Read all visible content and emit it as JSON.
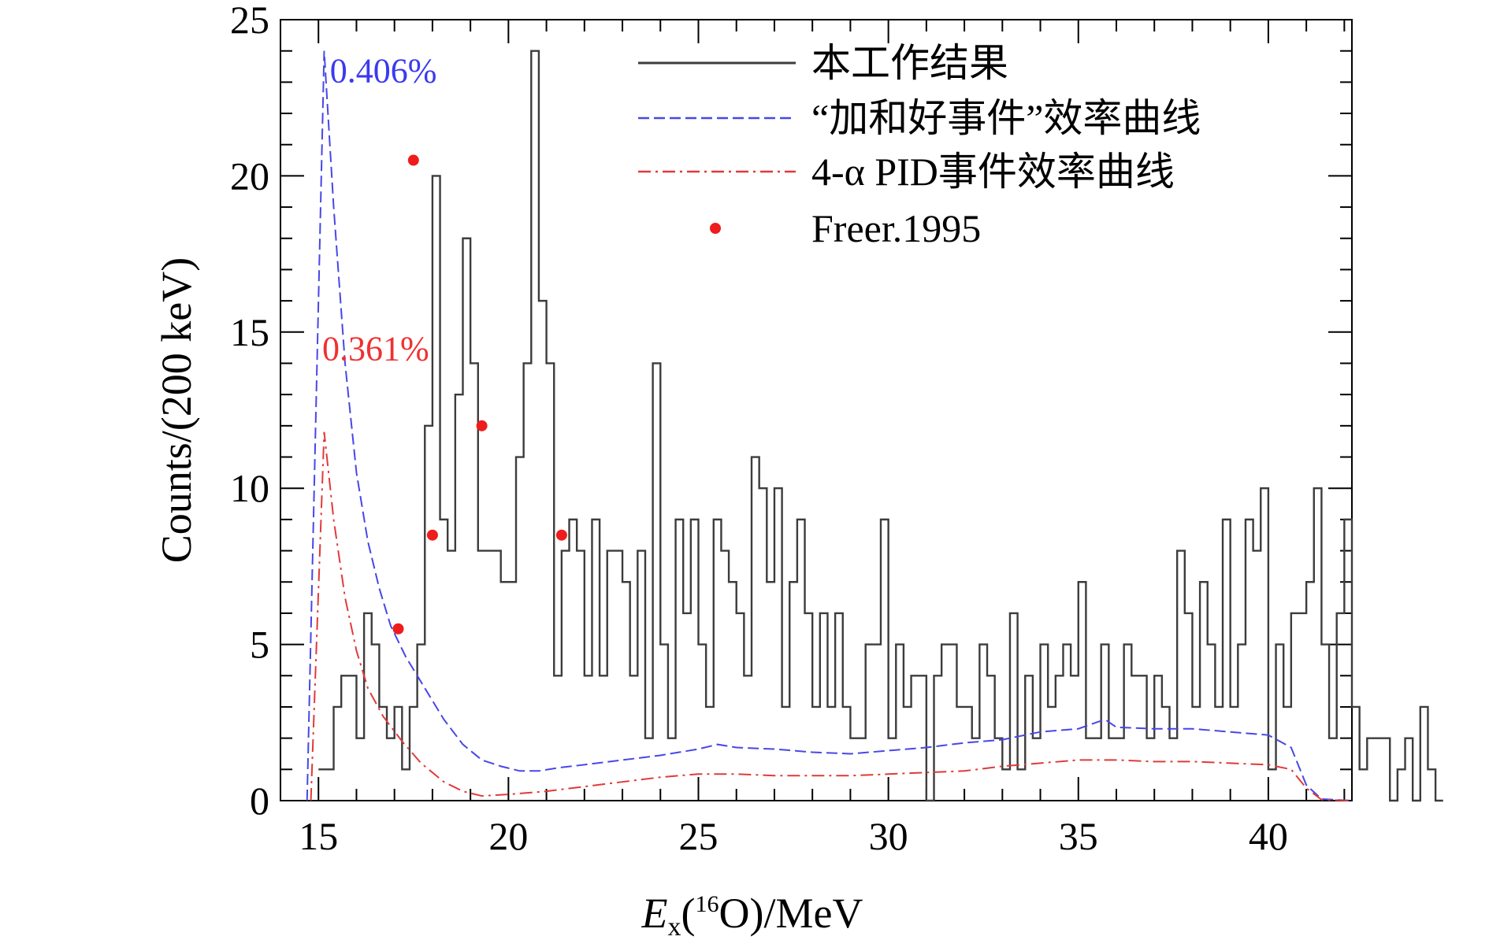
{
  "chart_data": {
    "type": "line",
    "xlabel": {
      "main": "E",
      "sub": "x",
      "paren_open": "(",
      "sup": "16",
      "element": "O",
      "tail": ")/MeV"
    },
    "ylabel": "Counts/(200 keV)",
    "xlim": [
      14.0,
      42.2
    ],
    "ylim": [
      0,
      25
    ],
    "x_ticks": [
      15,
      20,
      25,
      30,
      35,
      40
    ],
    "y_ticks": [
      0,
      5,
      10,
      15,
      20,
      25
    ],
    "legend_position": "top-right",
    "annotations": [
      {
        "text": "0.406%",
        "color": "#3a3af0",
        "x": 15.3,
        "y": 23.0
      },
      {
        "text": "0.361%",
        "color": "#f03030",
        "x": 15.1,
        "y": 14.1
      }
    ],
    "series": [
      {
        "name": "本工作结果",
        "style": "step",
        "color": "#3c3c3c",
        "bin_start": 15.0,
        "bin_width": 0.2,
        "values": [
          1,
          1,
          3,
          4,
          4,
          2,
          6,
          5,
          3,
          2,
          3,
          1,
          3,
          5,
          12,
          20,
          9,
          8,
          13,
          18,
          14,
          8,
          8,
          8,
          7,
          7,
          11,
          14,
          24,
          16,
          14,
          4,
          8,
          9,
          8,
          4,
          9,
          4,
          8,
          8,
          7,
          4,
          8,
          2,
          14,
          5,
          2,
          9,
          6,
          9,
          5,
          3,
          9,
          8,
          7,
          6,
          4,
          11,
          10,
          7,
          10,
          3,
          7,
          9,
          6,
          3,
          6,
          3,
          6,
          3,
          2,
          2,
          5,
          5,
          9,
          2,
          5,
          3,
          4,
          4,
          0,
          4,
          5,
          5,
          3,
          3,
          2,
          5,
          4,
          2,
          1,
          6,
          1,
          4,
          2,
          5,
          3,
          4,
          5,
          4,
          7,
          2,
          2,
          5,
          2,
          2,
          5,
          4,
          4,
          2,
          4,
          3,
          2,
          8,
          6,
          3,
          7,
          5,
          3,
          9,
          3,
          5,
          9,
          8,
          10,
          1,
          5,
          3,
          6,
          6,
          7,
          10,
          5,
          2,
          6,
          9,
          3,
          1,
          2,
          2,
          2,
          0,
          1,
          2,
          0,
          3,
          1,
          0
        ]
      },
      {
        "name": "“加和好事件”效率曲线",
        "style": "dashed",
        "color": "#4747e8",
        "points": [
          [
            14.7,
            0
          ],
          [
            15.15,
            24.0
          ],
          [
            15.4,
            19
          ],
          [
            15.7,
            14
          ],
          [
            16.0,
            10.5
          ],
          [
            16.3,
            8.3
          ],
          [
            16.6,
            6.8
          ],
          [
            16.9,
            5.6
          ],
          [
            17.3,
            4.6
          ],
          [
            17.8,
            3.6
          ],
          [
            18.3,
            2.6
          ],
          [
            18.8,
            1.8
          ],
          [
            19.3,
            1.3
          ],
          [
            19.8,
            1.1
          ],
          [
            20.3,
            0.95
          ],
          [
            20.8,
            0.95
          ],
          [
            21.3,
            1.05
          ],
          [
            22.0,
            1.15
          ],
          [
            23.0,
            1.3
          ],
          [
            24.0,
            1.45
          ],
          [
            25.0,
            1.65
          ],
          [
            25.5,
            1.8
          ],
          [
            26.0,
            1.7
          ],
          [
            27.0,
            1.65
          ],
          [
            28.0,
            1.55
          ],
          [
            29.0,
            1.5
          ],
          [
            30.0,
            1.6
          ],
          [
            31.0,
            1.7
          ],
          [
            32.0,
            1.85
          ],
          [
            33.0,
            1.95
          ],
          [
            34.0,
            2.2
          ],
          [
            35.0,
            2.3
          ],
          [
            35.7,
            2.6
          ],
          [
            36.0,
            2.35
          ],
          [
            37.0,
            2.3
          ],
          [
            38.0,
            2.3
          ],
          [
            39.0,
            2.2
          ],
          [
            40.0,
            2.1
          ],
          [
            40.6,
            1.7
          ],
          [
            41.0,
            0.5
          ],
          [
            41.4,
            0.05
          ],
          [
            42.2,
            0
          ]
        ]
      },
      {
        "name": "4-α PID事件效率曲线",
        "style": "dashdot",
        "color": "#e03a3a",
        "points": [
          [
            14.8,
            0
          ],
          [
            15.15,
            11.8
          ],
          [
            15.4,
            9.0
          ],
          [
            15.7,
            6.5
          ],
          [
            16.0,
            4.8
          ],
          [
            16.3,
            3.6
          ],
          [
            16.7,
            2.7
          ],
          [
            17.2,
            1.9
          ],
          [
            17.7,
            1.2
          ],
          [
            18.3,
            0.6
          ],
          [
            18.8,
            0.3
          ],
          [
            19.3,
            0.15
          ],
          [
            20.0,
            0.2
          ],
          [
            21.0,
            0.3
          ],
          [
            22.0,
            0.45
          ],
          [
            23.0,
            0.6
          ],
          [
            24.0,
            0.75
          ],
          [
            25.0,
            0.85
          ],
          [
            26.0,
            0.85
          ],
          [
            27.0,
            0.8
          ],
          [
            28.0,
            0.8
          ],
          [
            29.0,
            0.8
          ],
          [
            30.0,
            0.85
          ],
          [
            31.0,
            0.9
          ],
          [
            32.0,
            0.95
          ],
          [
            33.0,
            1.1
          ],
          [
            34.0,
            1.2
          ],
          [
            35.0,
            1.3
          ],
          [
            36.0,
            1.3
          ],
          [
            37.0,
            1.25
          ],
          [
            38.0,
            1.25
          ],
          [
            39.0,
            1.2
          ],
          [
            40.0,
            1.15
          ],
          [
            40.6,
            1.0
          ],
          [
            41.0,
            0.4
          ],
          [
            41.4,
            0.03
          ],
          [
            42.2,
            0
          ]
        ]
      },
      {
        "name": "Freer.1995",
        "style": "markers",
        "color": "#ee1c1c",
        "points": [
          [
            17.1,
            5.5
          ],
          [
            17.5,
            20.5
          ],
          [
            18.0,
            8.5
          ],
          [
            19.3,
            12.0
          ],
          [
            21.4,
            8.5
          ]
        ]
      }
    ]
  }
}
